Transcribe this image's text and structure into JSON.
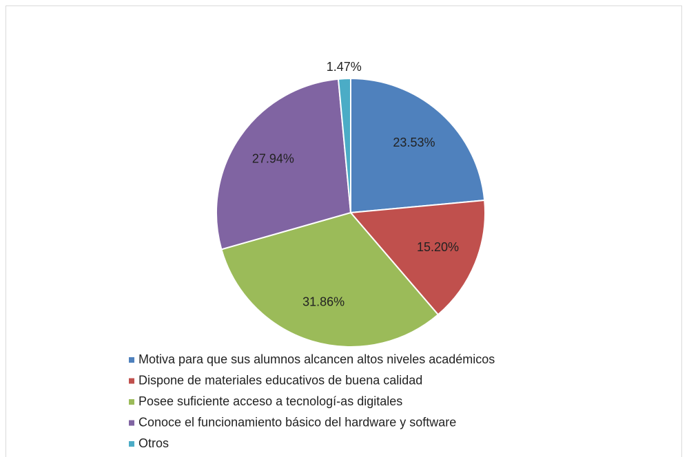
{
  "chart_data": {
    "type": "pie",
    "categories": [
      "Motiva para que sus alumnos alcancen altos niveles académicos",
      "Dispone de materiales educativos de buena calidad",
      "Posee suficiente acceso a tecnologí-as digitales",
      "Conoce el funcionamiento básico del hardware y software",
      "Otros"
    ],
    "values": [
      23.53,
      15.2,
      31.86,
      27.94,
      1.47
    ],
    "value_labels": [
      "23.53%",
      "15.20%",
      "31.86%",
      "27.94%",
      "1.47%"
    ],
    "colors": [
      "#4f81bd",
      "#c0504d",
      "#9bbb59",
      "#8064a2",
      "#4bacc6"
    ],
    "legend": "bottom"
  }
}
